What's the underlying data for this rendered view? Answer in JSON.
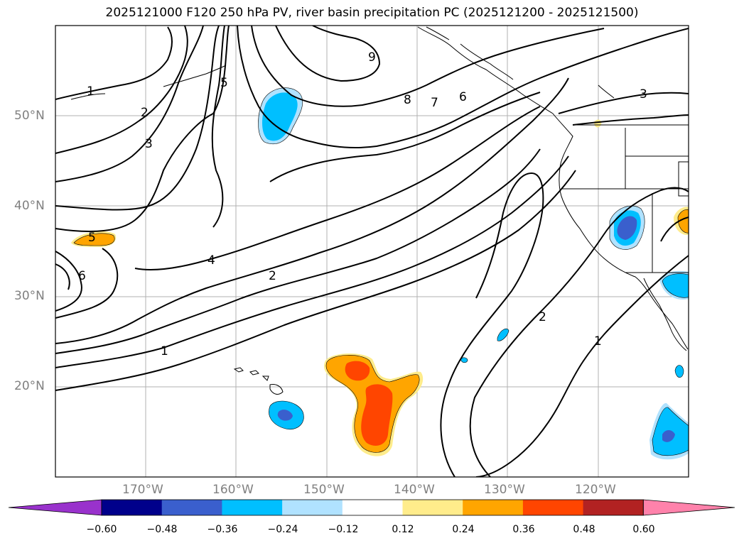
{
  "title": "2025121000 F120 250 hPa PV, river basin precipitation PC (2025121200 - 2025121500)",
  "lat_labels": [
    "50°N",
    "40°N",
    "30°N",
    "20°N"
  ],
  "lon_labels": [
    "170°W",
    "160°W",
    "150°W",
    "140°W",
    "130°W",
    "120°W"
  ],
  "colorbar": {
    "ticks": [
      "−0.60",
      "−0.48",
      "−0.36",
      "−0.24",
      "−0.12",
      "0.12",
      "0.24",
      "0.36",
      "0.48",
      "0.60"
    ],
    "colors": [
      "#9932cc",
      "#00008b",
      "#3a5fcd",
      "#00bfff",
      "#b0e2ff",
      "#ffffff",
      "#ffec8b",
      "#ffa500",
      "#ff4500",
      "#b22222",
      "#ff82ab"
    ]
  },
  "contour_labels": [
    "1",
    "2",
    "3",
    "4",
    "5",
    "6",
    "7",
    "8",
    "9"
  ],
  "contour_label_instances": [
    {
      "text": "1"
    },
    {
      "text": "2"
    },
    {
      "text": "3"
    },
    {
      "text": "5"
    },
    {
      "text": "9"
    },
    {
      "text": "8"
    },
    {
      "text": "7"
    },
    {
      "text": "6"
    },
    {
      "text": "3"
    },
    {
      "text": "5"
    },
    {
      "text": "6"
    },
    {
      "text": "4"
    },
    {
      "text": "2"
    },
    {
      "text": "1"
    },
    {
      "text": "2"
    },
    {
      "text": "1"
    }
  ]
}
